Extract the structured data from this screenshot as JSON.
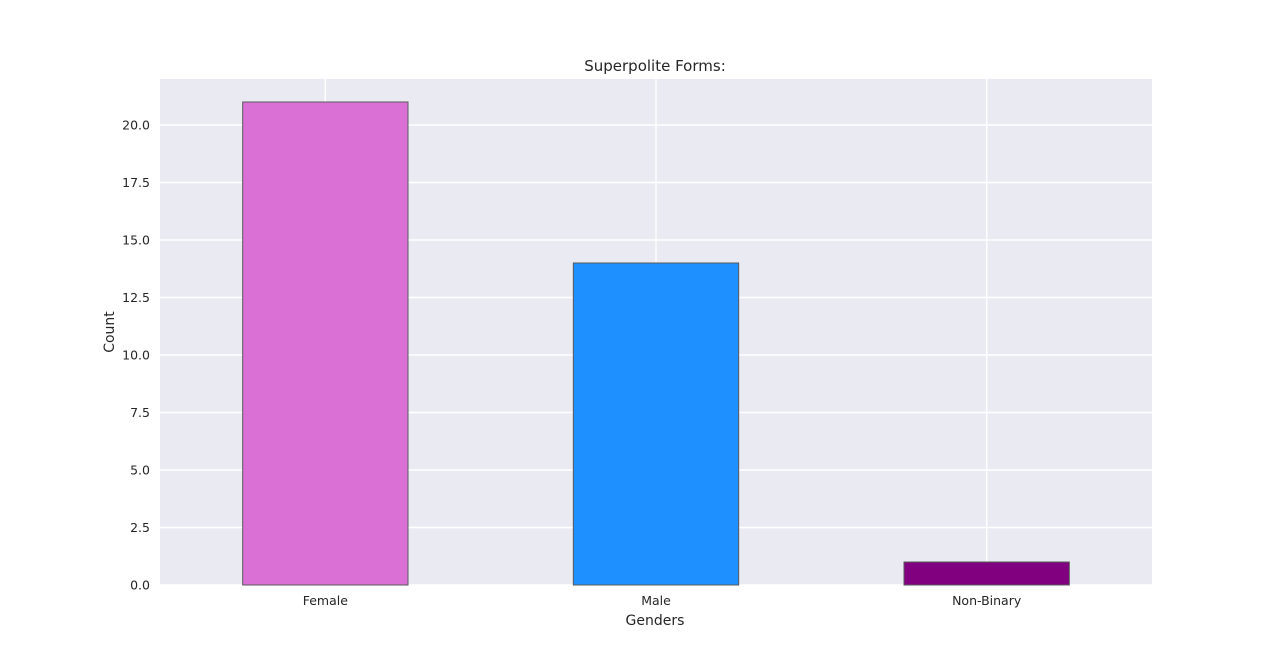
{
  "chart_data": {
    "type": "bar",
    "title": "Superpolite Forms:",
    "xlabel": "Genders",
    "ylabel": "Count",
    "categories": [
      "Female",
      "Male",
      "Non-Binary"
    ],
    "values": [
      21,
      14,
      1
    ],
    "colors": [
      "#da70d6",
      "#1e90ff",
      "#800080"
    ],
    "edge_color": "#5a5a5a",
    "ylim": [
      0,
      22
    ],
    "yticks": [
      "0.0",
      "2.5",
      "5.0",
      "7.5",
      "10.0",
      "12.5",
      "15.0",
      "17.5",
      "20.0"
    ],
    "background_color": "#eaeaf2",
    "grid": true,
    "grid_color": "#ffffff"
  }
}
